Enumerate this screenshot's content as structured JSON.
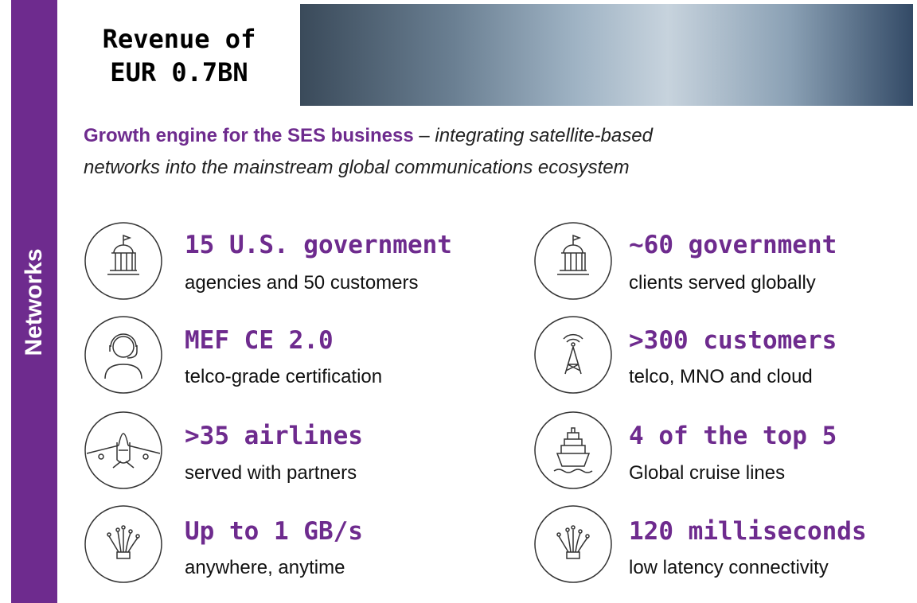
{
  "header": {
    "title_lines": [
      "Revenue of",
      "EUR 0.7BN"
    ],
    "side_label": "Networks"
  },
  "tagline": {
    "bold": "Growth engine for the SES business",
    "dash": " – ",
    "italic_lines": [
      "integrating satellite-based",
      "networks into the mainstream global communications ecosystem"
    ]
  },
  "items": [
    {
      "heading": "15 U.S. government",
      "sub": "agencies and 50 customers"
    },
    {
      "heading": "~60 government",
      "sub": "clients served globally"
    },
    {
      "heading": "MEF CE 2.0",
      "sub": "telco-grade certification"
    },
    {
      "heading": ">300 customers",
      "sub": "telco, MNO and cloud"
    },
    {
      "heading": ">35 airlines",
      "sub": "served with partners"
    },
    {
      "heading": "4 of the top 5",
      "sub": "Global cruise lines"
    },
    {
      "heading": "Up to 1 GB/s",
      "sub": "anywhere, anytime"
    },
    {
      "heading": "120 milliseconds",
      "sub": "low latency connectivity"
    }
  ]
}
